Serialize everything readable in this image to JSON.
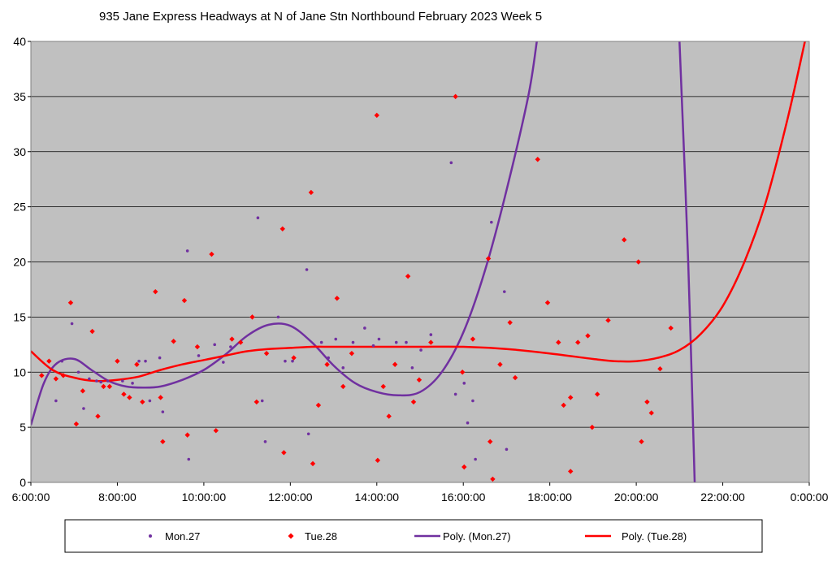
{
  "chart_data": {
    "type": "scatter",
    "title": "935 Jane Express Headways at N of Jane Stn Northbound February 2023  Week 5",
    "x_ticks": [
      "6:00:00",
      "8:00:00",
      "10:00:00",
      "12:00:00",
      "14:00:00",
      "16:00:00",
      "18:00:00",
      "20:00:00",
      "22:00:00",
      "0:00:00"
    ],
    "y_ticks": [
      "0",
      "5",
      "10",
      "15",
      "20",
      "25",
      "30",
      "35",
      "40"
    ],
    "xlim_hours": [
      6,
      24
    ],
    "ylim": [
      0,
      40
    ],
    "grid": "horizontal",
    "plot_background": "#c0c0c0",
    "legend_position": "bottom",
    "series": [
      {
        "name": "Mon.27",
        "kind": "points",
        "marker": "dot",
        "color": "#7030a0",
        "x": [
          6.58,
          6.72,
          6.95,
          7.1,
          7.22,
          7.35,
          7.52,
          7.62,
          7.78,
          8.12,
          8.35,
          8.5,
          8.65,
          8.75,
          8.98,
          9.05,
          9.62,
          9.65,
          9.88,
          10.25,
          10.45,
          10.62,
          11.25,
          11.35,
          11.42,
          11.72,
          11.88,
          12.05,
          12.38,
          12.42,
          12.72,
          12.88,
          13.05,
          13.22,
          13.45,
          13.72,
          13.92,
          14.05,
          14.45,
          14.68,
          14.82,
          15.02,
          15.25,
          15.72,
          15.82,
          16.02,
          16.1,
          16.22,
          16.28,
          16.65,
          16.95,
          17.0
        ],
        "y": [
          7.4,
          11.0,
          14.4,
          10.0,
          6.7,
          9.4,
          9.2,
          9.1,
          9.2,
          9.2,
          9.0,
          11.0,
          11.0,
          7.4,
          11.3,
          6.4,
          21.0,
          2.1,
          11.5,
          12.5,
          10.9,
          12.3,
          24.0,
          7.4,
          3.7,
          15.0,
          11.0,
          11.0,
          19.3,
          4.4,
          12.7,
          11.3,
          13.0,
          10.4,
          12.7,
          14.0,
          12.4,
          13.0,
          12.7,
          12.7,
          10.4,
          12.0,
          13.4,
          29.0,
          8.0,
          9.0,
          5.4,
          7.4,
          2.1,
          23.6,
          17.3,
          3.0
        ]
      },
      {
        "name": "Tue.28",
        "kind": "points",
        "marker": "diamond",
        "color": "#ff0000",
        "x": [
          6.25,
          6.42,
          6.58,
          6.75,
          6.92,
          7.05,
          7.2,
          7.42,
          7.55,
          7.68,
          7.82,
          8.0,
          8.15,
          8.28,
          8.45,
          8.58,
          8.88,
          9.0,
          9.05,
          9.3,
          9.55,
          9.62,
          9.85,
          10.18,
          10.28,
          10.65,
          10.85,
          11.12,
          11.22,
          11.45,
          11.82,
          11.85,
          12.08,
          12.48,
          12.52,
          12.65,
          12.85,
          13.08,
          13.22,
          13.42,
          14.0,
          14.02,
          14.15,
          14.28,
          14.42,
          14.72,
          14.85,
          14.98,
          15.25,
          15.82,
          15.98,
          16.02,
          16.22,
          16.58,
          16.62,
          16.68,
          16.85,
          17.08,
          17.2,
          17.72,
          17.95,
          18.2,
          18.32,
          18.48,
          18.48,
          18.65,
          18.88,
          18.98,
          19.1,
          19.35,
          19.72,
          20.05,
          20.12,
          20.25,
          20.35,
          20.55,
          20.8
        ],
        "y": [
          9.7,
          11.0,
          9.4,
          9.7,
          16.3,
          5.3,
          8.3,
          13.7,
          6.0,
          8.7,
          8.7,
          11.0,
          8.0,
          7.7,
          10.7,
          7.3,
          17.3,
          7.7,
          3.7,
          12.8,
          16.5,
          4.3,
          12.3,
          20.7,
          4.7,
          13.0,
          12.7,
          15.0,
          7.3,
          11.7,
          23.0,
          2.7,
          11.3,
          26.3,
          1.7,
          7.0,
          10.7,
          16.7,
          8.7,
          11.7,
          33.3,
          2.0,
          8.7,
          6.0,
          10.7,
          18.7,
          7.3,
          9.3,
          12.7,
          35.0,
          10.0,
          1.4,
          13.0,
          20.3,
          3.7,
          0.3,
          10.7,
          14.5,
          9.5,
          29.3,
          16.3,
          12.7,
          7.0,
          7.7,
          1.0,
          12.7,
          13.3,
          5.0,
          8.0,
          14.7,
          22.0,
          20.0,
          3.7,
          7.3,
          6.3,
          10.3,
          14.0
        ]
      },
      {
        "name": "Poly. (Mon.27)",
        "kind": "trendline",
        "color": "#7030a0",
        "x": [
          6.0,
          6.3,
          6.6,
          7.0,
          7.4,
          7.8,
          8.2,
          8.6,
          9.0,
          9.5,
          10.0,
          10.5,
          11.0,
          11.5,
          12.0,
          12.5,
          13.0,
          13.5,
          14.0,
          14.5,
          15.0,
          15.5,
          16.0,
          16.5,
          17.0,
          17.5,
          17.7,
          21.0,
          21.2,
          21.35
        ],
        "y": [
          5.2,
          9.0,
          10.8,
          11.2,
          10.2,
          9.2,
          8.7,
          8.6,
          8.7,
          9.3,
          10.2,
          11.6,
          13.3,
          14.3,
          14.2,
          12.7,
          10.6,
          9.0,
          8.2,
          7.9,
          8.2,
          10.0,
          13.6,
          19.2,
          26.5,
          35.0,
          40.0,
          40.0,
          20.0,
          0.0
        ]
      },
      {
        "name": "Poly. (Tue.28)",
        "kind": "trendline",
        "color": "#ff0000",
        "x": [
          6.0,
          6.5,
          7.0,
          7.5,
          8.0,
          8.5,
          9.0,
          9.5,
          10.0,
          10.5,
          11.0,
          11.5,
          12.0,
          12.5,
          13.0,
          14.0,
          15.0,
          16.0,
          17.0,
          18.0,
          19.0,
          19.5,
          20.0,
          20.5,
          21.0,
          21.5,
          22.0,
          22.5,
          23.0,
          23.5,
          23.9
        ],
        "y": [
          11.9,
          10.2,
          9.5,
          9.2,
          9.3,
          9.6,
          10.2,
          10.7,
          11.1,
          11.5,
          11.9,
          12.1,
          12.2,
          12.3,
          12.3,
          12.3,
          12.3,
          12.3,
          12.1,
          11.7,
          11.2,
          11.0,
          11.0,
          11.3,
          12.0,
          13.5,
          16.0,
          20.0,
          25.5,
          33.0,
          40.0
        ]
      }
    ]
  }
}
